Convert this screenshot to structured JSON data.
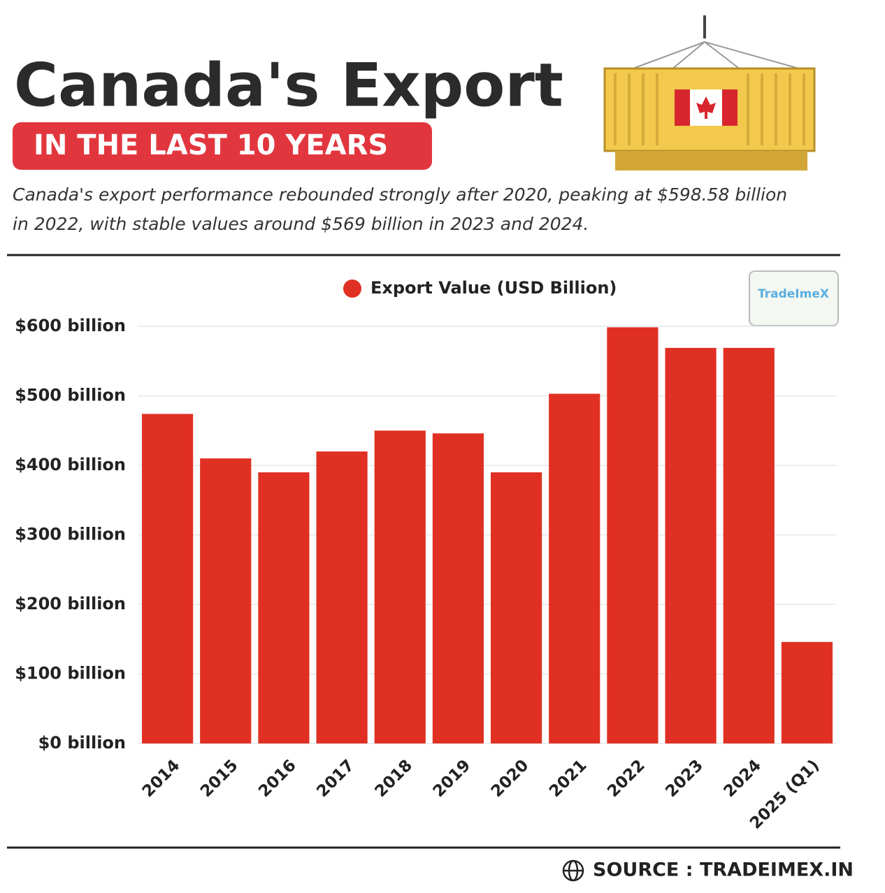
{
  "chart_data": {
    "type": "bar",
    "title": "Canada's Export",
    "subtitle": "IN THE LAST 10 YEARS",
    "description": "Canada's export performance rebounded strongly after 2020, peaking at $598.58 billion in 2022, with stable values around $569 billion in 2023 and 2024.",
    "logo": "TradeImeX",
    "source": "SOURCE : TRADEIMEX.IN",
    "categories": [
      "2014",
      "2015",
      "2016",
      "2017",
      "2018",
      "2019",
      "2020",
      "2021",
      "2022",
      "2023",
      "2024",
      "2025 (Q1)"
    ],
    "series": [
      {
        "name": "Export Value (USD Billion)",
        "color": "#e03024",
        "values": [
          474,
          410,
          390,
          420,
          450,
          446,
          390,
          503,
          598.58,
          569,
          569,
          146
        ]
      }
    ],
    "ylim": [
      0,
      600
    ],
    "yticks": [
      {
        "value": 0,
        "label": "$0 billion"
      },
      {
        "value": 100,
        "label": "$100 billion"
      },
      {
        "value": 200,
        "label": "$200 billion"
      },
      {
        "value": 300,
        "label": "$300 billion"
      },
      {
        "value": 400,
        "label": "$400 billion"
      },
      {
        "value": 500,
        "label": "$500 billion"
      },
      {
        "value": 600,
        "label": "$600 billion"
      }
    ],
    "grid": true,
    "legend": "top"
  }
}
